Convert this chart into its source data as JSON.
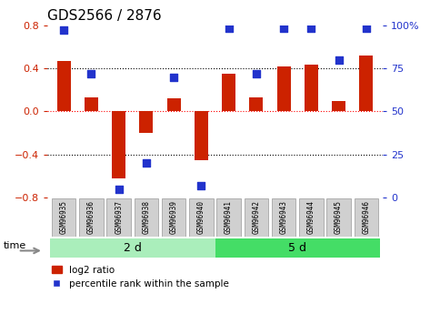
{
  "title": "GDS2566 / 2876",
  "samples": [
    "GSM96935",
    "GSM96936",
    "GSM96937",
    "GSM96938",
    "GSM96939",
    "GSM96940",
    "GSM96941",
    "GSM96942",
    "GSM96943",
    "GSM96944",
    "GSM96945",
    "GSM96946"
  ],
  "log2_ratio": [
    0.47,
    0.13,
    -0.62,
    -0.2,
    0.12,
    -0.45,
    0.35,
    0.13,
    0.42,
    0.43,
    0.1,
    0.52
  ],
  "percentile_rank": [
    97,
    72,
    5,
    20,
    70,
    7,
    98,
    72,
    98,
    98,
    80,
    98
  ],
  "group1_label": "2 d",
  "group2_label": "5 d",
  "group1_count": 6,
  "group2_count": 6,
  "bar_color": "#cc2200",
  "dot_color": "#2233cc",
  "ylim_left": [
    -0.8,
    0.8
  ],
  "ylim_right": [
    0,
    100
  ],
  "yticks_left": [
    -0.8,
    -0.4,
    0.0,
    0.4,
    0.8
  ],
  "yticks_right": [
    0,
    25,
    50,
    75,
    100
  ],
  "ytick_labels_right": [
    "0",
    "25",
    "50",
    "75",
    "100%"
  ],
  "hlines": [
    -0.4,
    0.0,
    0.4
  ],
  "hline_colors": [
    "black",
    "red",
    "black"
  ],
  "hline_styles": [
    "dotted",
    "dotted",
    "dotted"
  ],
  "group1_color": "#aaeebb",
  "group2_color": "#44dd66",
  "bg_color": "#ffffff",
  "time_label": "time",
  "legend_bar_label": "log2 ratio",
  "legend_dot_label": "percentile rank within the sample",
  "title_fontsize": 11,
  "tick_fontsize": 8,
  "sample_box_color": "#d0d0d0",
  "sample_box_edge": "#999999"
}
